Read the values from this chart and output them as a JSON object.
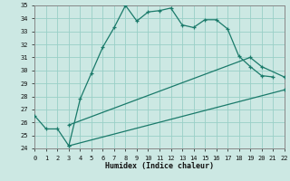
{
  "xlabel": "Humidex (Indice chaleur)",
  "background_color": "#cce8e3",
  "grid_color": "#99cfc7",
  "line_color": "#1a7a6a",
  "xlim": [
    0,
    22
  ],
  "ylim": [
    24,
    35
  ],
  "yticks": [
    24,
    25,
    26,
    27,
    28,
    29,
    30,
    31,
    32,
    33,
    34,
    35
  ],
  "xticks": [
    0,
    1,
    2,
    3,
    4,
    5,
    6,
    7,
    8,
    9,
    10,
    11,
    12,
    13,
    14,
    15,
    16,
    17,
    18,
    19,
    20,
    21,
    22
  ],
  "curve1_x": [
    0,
    1,
    2,
    3,
    4,
    5,
    6,
    7,
    8,
    9,
    10,
    11,
    12,
    13,
    14,
    15,
    16,
    17,
    18,
    19,
    20,
    21
  ],
  "curve1_y": [
    26.5,
    25.5,
    25.5,
    24.2,
    27.8,
    29.8,
    31.8,
    33.3,
    35.0,
    33.8,
    34.5,
    34.6,
    34.8,
    33.5,
    33.3,
    33.9,
    33.9,
    33.2,
    31.1,
    30.3,
    29.6,
    29.5
  ],
  "curve2_x": [
    3,
    19,
    20,
    22
  ],
  "curve2_y": [
    25.8,
    31.0,
    30.3,
    29.5
  ],
  "curve3_x": [
    3,
    22
  ],
  "curve3_y": [
    24.2,
    28.5
  ],
  "curve4_x": [
    3,
    22
  ],
  "curve4_y": [
    25.8,
    30.3
  ]
}
